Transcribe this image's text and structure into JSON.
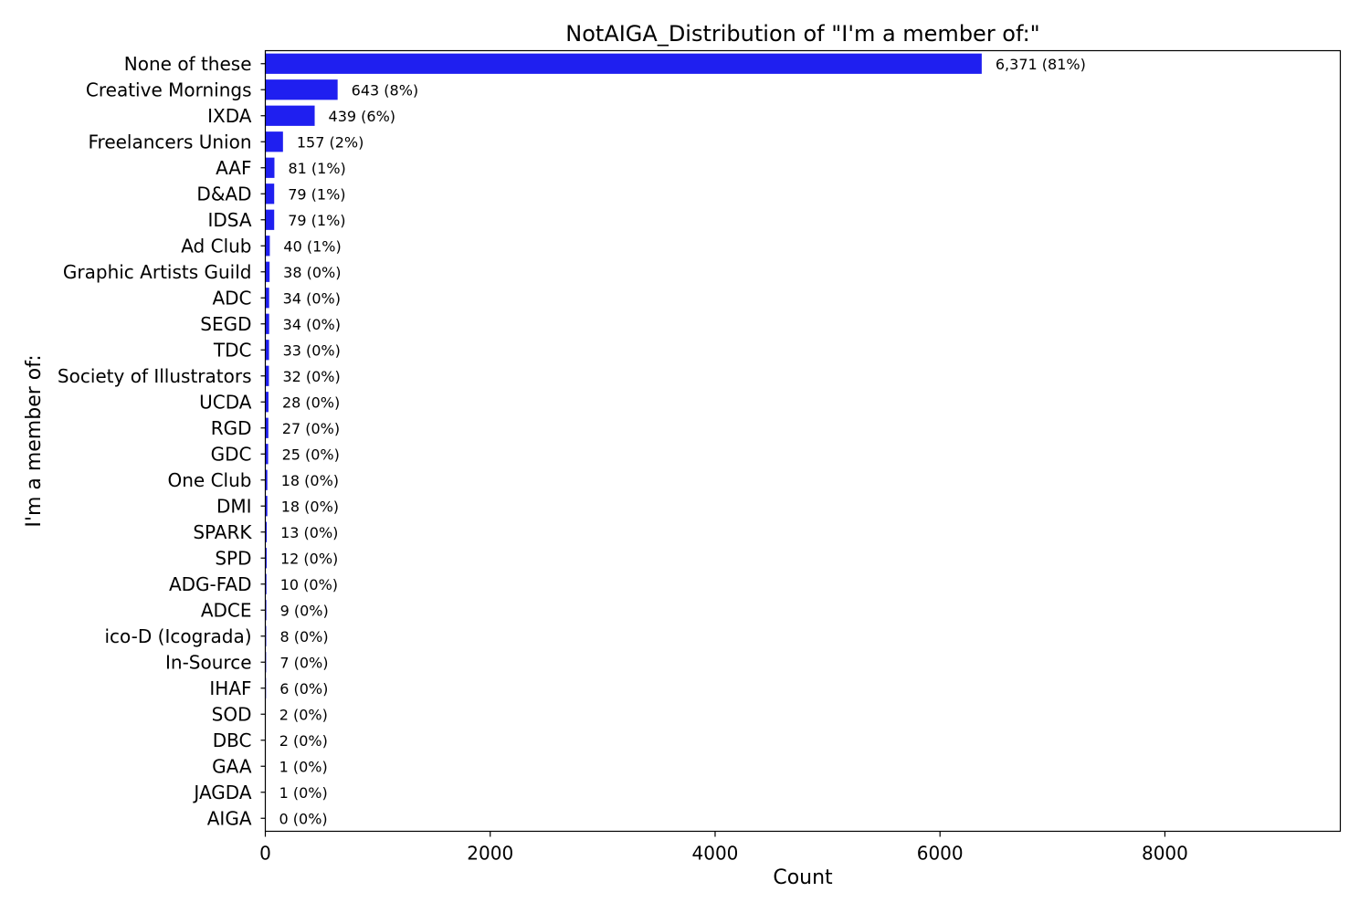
{
  "chart_data": {
    "type": "bar",
    "orientation": "horizontal",
    "title": "NotAIGA_Distribution of \"I'm a member of:\"",
    "xlabel": "Count",
    "ylabel": "I'm a member of:",
    "xlim": [
      0,
      9560
    ],
    "xticks": [
      0,
      2000,
      4000,
      6000,
      8000
    ],
    "grid": false,
    "bar_color": "#1f1ff0",
    "categories": [
      "None of these",
      "Creative Mornings",
      "IXDA",
      "Freelancers Union",
      "AAF",
      "D&AD",
      "IDSA",
      "Ad Club",
      "Graphic Artists Guild",
      "ADC",
      "SEGD",
      "TDC",
      "Society of Illustrators",
      "UCDA",
      "RGD",
      "GDC",
      "One Club",
      "DMI",
      "SPARK",
      "SPD",
      "ADG-FAD",
      "ADCE",
      "ico-D (Icograda)",
      "In-Source",
      "IHAF",
      "SOD",
      "DBC",
      "GAA",
      "JAGDA",
      "AIGA"
    ],
    "values": [
      6371,
      643,
      439,
      157,
      81,
      79,
      79,
      40,
      38,
      34,
      34,
      33,
      32,
      28,
      27,
      25,
      18,
      18,
      13,
      12,
      10,
      9,
      8,
      7,
      6,
      2,
      2,
      1,
      1,
      0
    ],
    "data_labels": [
      "6,371 (81%)",
      "643 (8%)",
      "439 (6%)",
      "157 (2%)",
      "81 (1%)",
      "79 (1%)",
      "79 (1%)",
      "40 (1%)",
      "38 (0%)",
      "34 (0%)",
      "34 (0%)",
      "33 (0%)",
      "32 (0%)",
      "28 (0%)",
      "27 (0%)",
      "25 (0%)",
      "18 (0%)",
      "18 (0%)",
      "13 (0%)",
      "12 (0%)",
      "10 (0%)",
      "9 (0%)",
      "8 (0%)",
      "7 (0%)",
      "6 (0%)",
      "2 (0%)",
      "2 (0%)",
      "1 (0%)",
      "1 (0%)",
      "0 (0%)"
    ]
  }
}
